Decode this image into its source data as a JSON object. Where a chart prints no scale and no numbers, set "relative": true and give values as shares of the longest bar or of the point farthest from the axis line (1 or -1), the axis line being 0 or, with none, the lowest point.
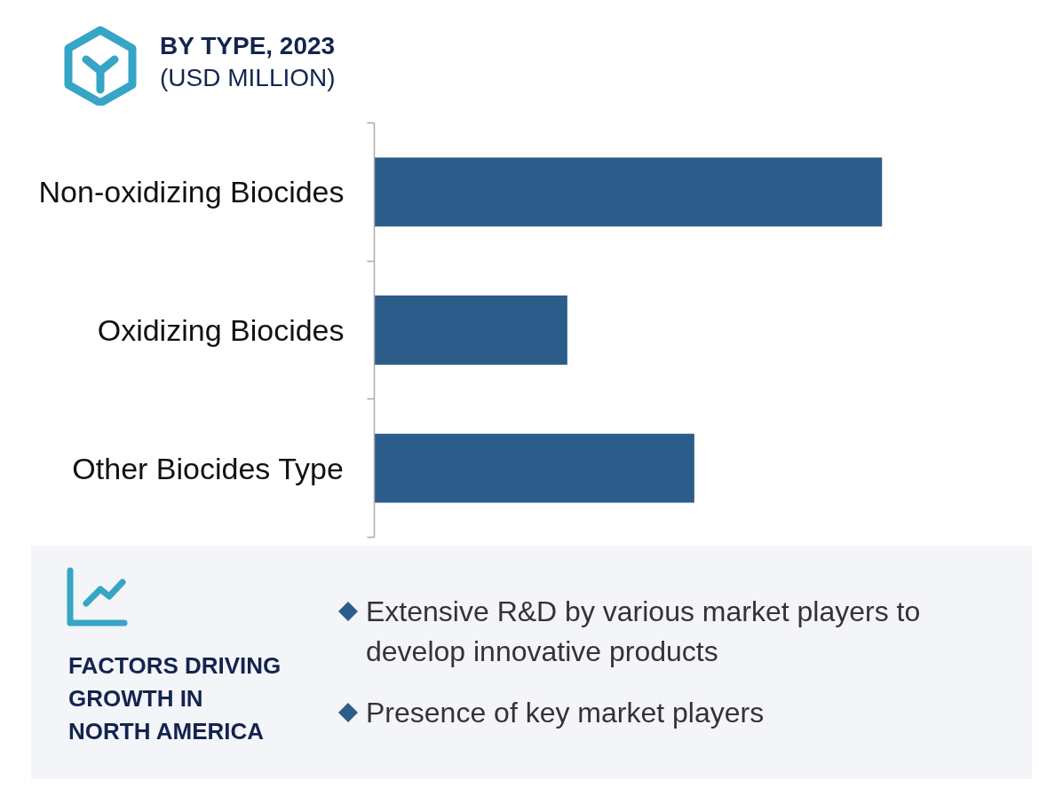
{
  "chart_data": {
    "type": "bar",
    "orientation": "horizontal",
    "relative": true,
    "title": "BY TYPE, 2023",
    "subtitle": "(USD MILLION)",
    "categories": [
      "Non-oxidizing Biocides",
      "Oxidizing Biocides",
      "Other Biocides Type"
    ],
    "values": [
      1,
      0.38,
      0.63
    ],
    "color": "#2c5d8a",
    "annotations": [
      "FACTORS DRIVING GROWTH IN NORTH AMERICA",
      "Extensive R&D by various market players to develop innovative products",
      "Presence of key market players"
    ]
  }
}
